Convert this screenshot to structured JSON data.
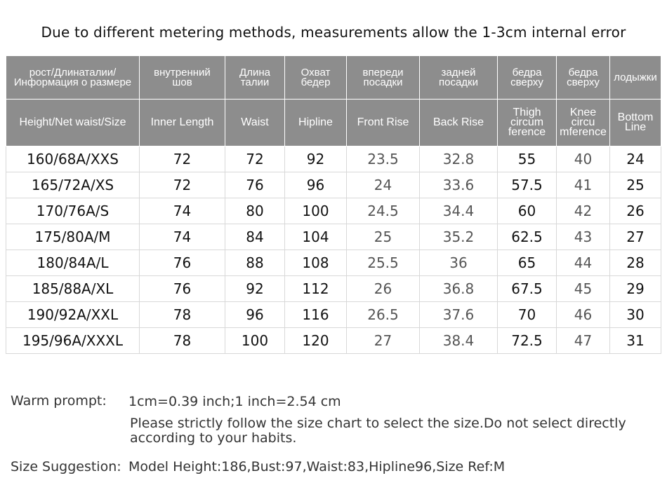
{
  "header": {
    "title": "Due to different metering methods, measurements allow the 1-3cm internal error"
  },
  "table": {
    "header_ru": [
      "рост/Длинаталии/\nИнформация о размере",
      "внутренний\nшов",
      "Длина\nталии",
      "Охват\nбедер",
      "впереди\nпосадки",
      "задней\nпосадки",
      "бедра\nсверху",
      "бедра\nсверху",
      "лодыжки"
    ],
    "header_en": [
      "Height/Net waist/Size",
      "Inner  Length",
      "Waist",
      "Hipline",
      "Front Rise",
      "Back Rise",
      "Thigh\ncircum\nference",
      "Knee\ncircu\nmference",
      "Bottom\nLine"
    ],
    "rows": [
      [
        "160/68A/XXS",
        "72",
        "72",
        "92",
        "23.5",
        "32.8",
        "55",
        "40",
        "24"
      ],
      [
        "165/72A/XS",
        "72",
        "76",
        "96",
        "24",
        "33.6",
        "57.5",
        "41",
        "25"
      ],
      [
        "170/76A/S",
        "74",
        "80",
        "100",
        "24.5",
        "34.4",
        "60",
        "42",
        "26"
      ],
      [
        "175/80A/M",
        "74",
        "84",
        "104",
        "25",
        "35.2",
        "62.5",
        "43",
        "27"
      ],
      [
        "180/84A/L",
        "76",
        "88",
        "108",
        "25.5",
        "36",
        "65",
        "44",
        "28"
      ],
      [
        "185/88A/XL",
        "76",
        "92",
        "112",
        "26",
        "36.8",
        "67.5",
        "45",
        "29"
      ],
      [
        "190/92A/XXL",
        "78",
        "96",
        "116",
        "26.5",
        "37.6",
        "70",
        "46",
        "30"
      ],
      [
        "195/96A/XXXL",
        "78",
        "100",
        "120",
        "27",
        "38.4",
        "72.5",
        "47",
        "31"
      ]
    ]
  },
  "notes": {
    "warm_label": "Warm prompt:",
    "warm_lines": [
      "1cm=0.39 inch;1 inch=2.54 cm",
      "Please strictly follow the size chart  to select the size.Do not select directly\naccording to your habits."
    ],
    "size_label": "Size Suggestion:",
    "size_text": "Model Height:186,Bust:97,Waist:83,Hipline96,Size Ref:M"
  }
}
